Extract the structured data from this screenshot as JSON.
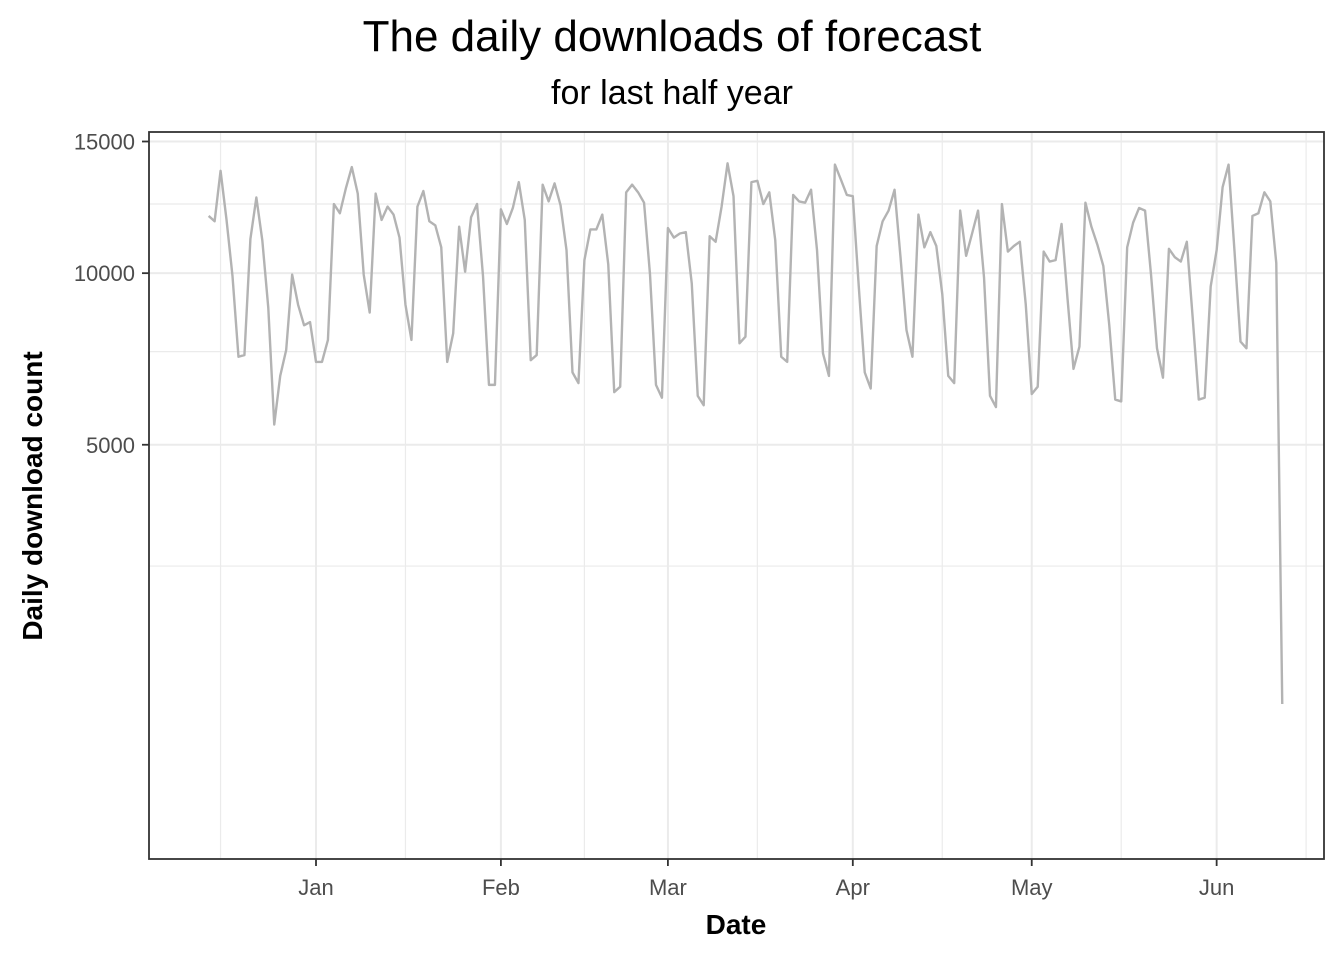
{
  "chart_data": {
    "type": "line",
    "title": "The daily downloads of forecast",
    "subtitle": "for last half year",
    "xlabel": "Date",
    "ylabel": "Daily download count",
    "y_scale": "sqrt",
    "ylim": [
      0,
      15400
    ],
    "y_ticks": [
      5000,
      10000,
      15000
    ],
    "y_minor_ticks": [
      2500,
      7500,
      12500
    ],
    "xlim": [
      "2018-12-04",
      "2019-06-19"
    ],
    "x_ticks": [
      {
        "date": "2019-01-01",
        "label": "Jan"
      },
      {
        "date": "2019-02-01",
        "label": "Feb"
      },
      {
        "date": "2019-03-01",
        "label": "Mar"
      },
      {
        "date": "2019-04-01",
        "label": "Apr"
      },
      {
        "date": "2019-05-01",
        "label": "May"
      },
      {
        "date": "2019-06-01",
        "label": "Jun"
      }
    ],
    "x_minor_ticks": [
      "2018-12-16",
      "2019-01-16",
      "2019-02-15",
      "2019-03-16",
      "2019-04-16",
      "2019-05-16",
      "2019-06-16"
    ],
    "grid": true,
    "line_color": "#b3b3b3",
    "series": [
      {
        "start": "2018-12-14",
        "values": [
          12050,
          11850,
          13800,
          11900,
          9900,
          7350,
          7400,
          11200,
          12750,
          11150,
          8850,
          5500,
          6800,
          7550,
          9950,
          8950,
          8300,
          8400,
          7200,
          7200,
          7850,
          12500,
          12150,
          13100,
          13950,
          12900,
          9950,
          8700,
          12900,
          11900,
          12400,
          12100,
          11250,
          8950,
          7850,
          12400,
          13000,
          11850,
          11700,
          10900,
          7200,
          8050,
          11650,
          10050,
          12000,
          12500,
          9900,
          6550,
          6550,
          12300,
          11750,
          12350,
          13350,
          11900,
          7250,
          7400,
          13250,
          12600,
          13300,
          12450,
          10800,
          6900,
          6600,
          10450,
          11550,
          11550,
          12100,
          10300,
          6350,
          6500,
          12950,
          13250,
          12950,
          12550,
          9950,
          6550,
          6200,
          11600,
          11250,
          11400,
          11450,
          9650,
          6250,
          6000,
          11300,
          11100,
          12400,
          14100,
          12800,
          7750,
          7950,
          13350,
          13400,
          12500,
          12950,
          11150,
          7350,
          7200,
          12850,
          12600,
          12550,
          13050,
          10800,
          7450,
          6800,
          14050,
          13450,
          12850,
          12800,
          9550,
          6900,
          6450,
          10950,
          11850,
          12250,
          13050,
          10550,
          8150,
          7350,
          12100,
          10900,
          11450,
          10950,
          9300,
          6800,
          6600,
          12250,
          10600,
          11400,
          12250,
          9850,
          6250,
          5950,
          12500,
          10750,
          10950,
          11100,
          8950,
          6300,
          6500,
          10750,
          10400,
          10450,
          11750,
          9150,
          7000,
          7650,
          12550,
          11650,
          11000,
          10250,
          8300,
          6150,
          6100,
          10900,
          11800,
          12350,
          12250,
          9950,
          7600,
          6750,
          10850,
          10550,
          10400,
          11100,
          8500,
          6150,
          6200,
          9550,
          10800,
          13150,
          14050,
          10750,
          7800,
          7600,
          12050,
          12150,
          12950,
          12600,
          10350,
          700
        ]
      }
    ]
  }
}
